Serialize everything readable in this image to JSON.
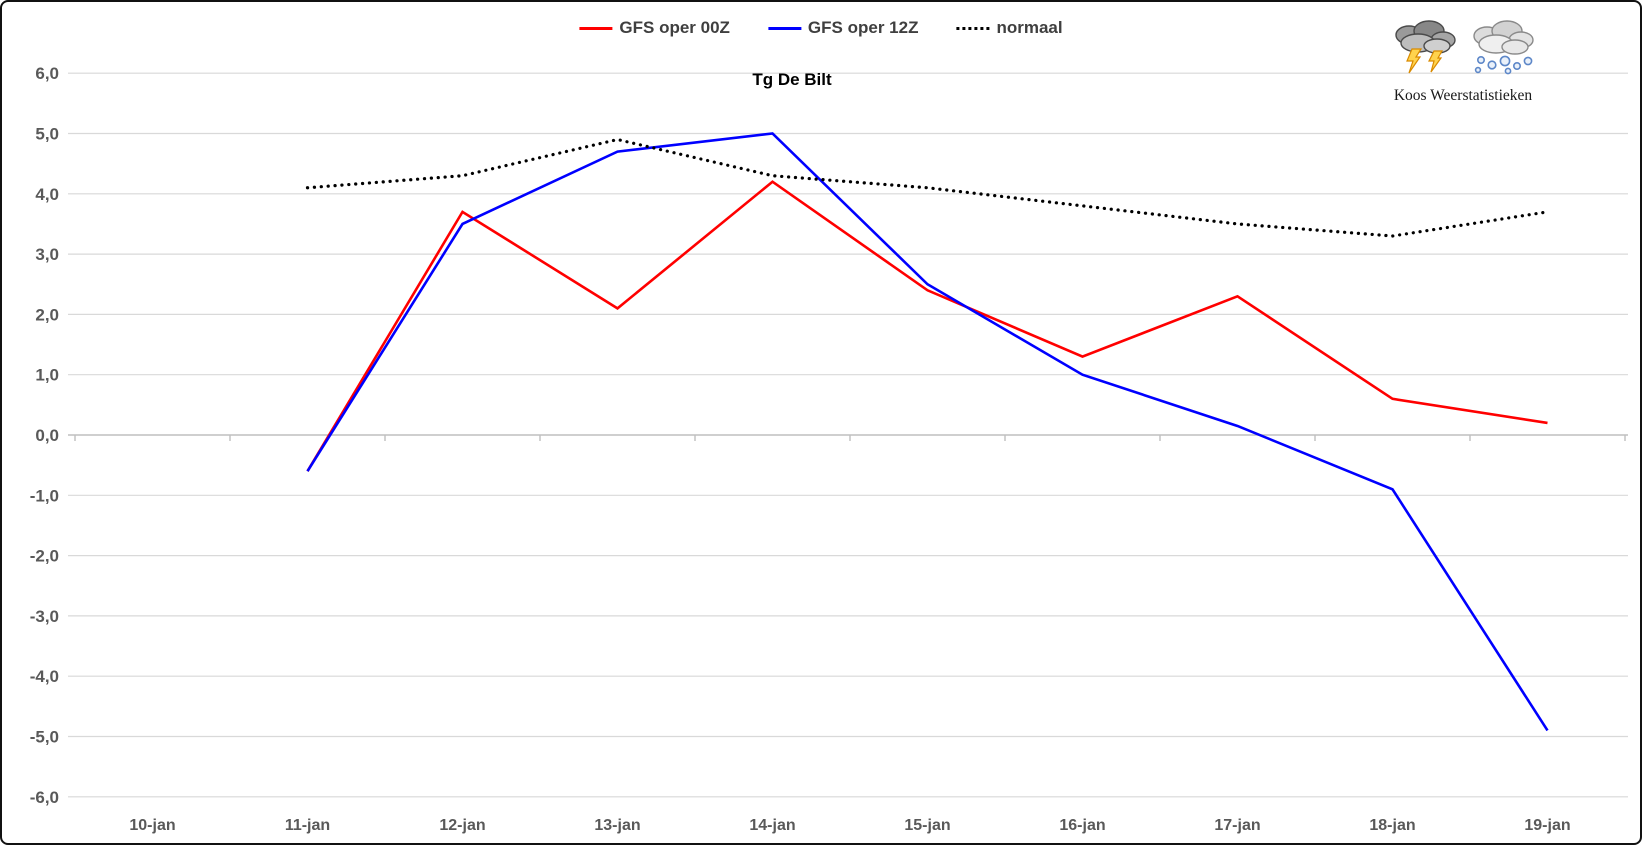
{
  "header": {
    "title": "Tg De Bilt"
  },
  "branding": {
    "caption": "Koos Weerstatistieken",
    "icons": [
      "thunder-cloud-icon",
      "snow-cloud-icon"
    ]
  },
  "chart_data": {
    "type": "line",
    "title": "Tg De Bilt",
    "categories": [
      "10-jan",
      "11-jan",
      "12-jan",
      "13-jan",
      "14-jan",
      "15-jan",
      "16-jan",
      "17-jan",
      "18-jan",
      "19-jan"
    ],
    "series": [
      {
        "name": "GFS oper 00Z",
        "color": "#ff0000",
        "style": "solid",
        "values": [
          null,
          -0.6,
          3.7,
          2.1,
          4.2,
          2.4,
          1.3,
          2.3,
          0.6,
          0.2
        ]
      },
      {
        "name": "GFS oper 12Z",
        "color": "#0000ff",
        "style": "solid",
        "values": [
          null,
          -0.6,
          3.5,
          4.7,
          5.0,
          2.5,
          1.0,
          0.15,
          -0.9,
          -4.9
        ]
      },
      {
        "name": "normaal",
        "color": "#000000",
        "style": "dotted",
        "values": [
          null,
          4.1,
          4.3,
          4.9,
          4.3,
          4.1,
          3.8,
          3.5,
          3.3,
          3.7
        ]
      }
    ],
    "ylim": [
      -6,
      6
    ],
    "y_tick_step": 1,
    "y_tick_labels": [
      "6,0",
      "5,0",
      "4,0",
      "3,0",
      "2,0",
      "1,0",
      "0,0",
      "-1,0",
      "-2,0",
      "-3,0",
      "-4,0",
      "-5,0",
      "-6,0"
    ],
    "grid": true,
    "legend_position": "top-center",
    "colors": {
      "gridline": "#d9d9d9",
      "axis_line": "#bfbfbf",
      "tick_label": "#595959",
      "legend_text": "#3f3f3f"
    }
  }
}
